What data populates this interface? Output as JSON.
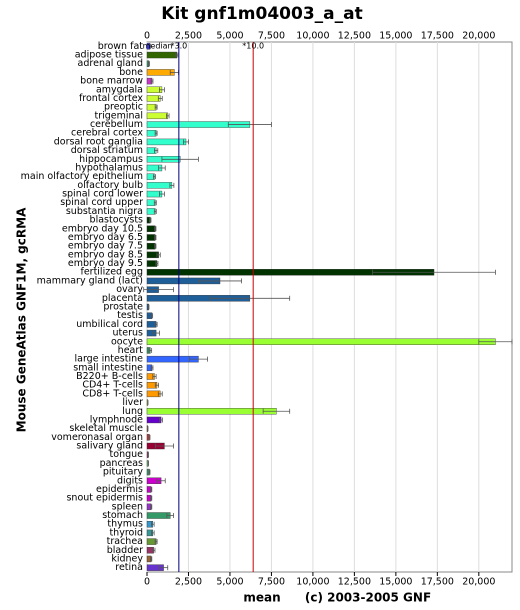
{
  "chart_data": {
    "type": "hbar",
    "title": "Kit gnf1m04003_a_at",
    "ylabel": "Mouse GeneAtlas GNF1M, gcRMA",
    "xlabel": "mean",
    "footer": "(c) 2003-2005 GNF",
    "categories": [
      "brown fat",
      "adipose tissue",
      "adrenal gland",
      "bone",
      "bone marrow",
      "amygdala",
      "frontal cortex",
      "preoptic",
      "trigeminal",
      "cerebellum",
      "cerebral cortex",
      "dorsal root ganglia",
      "dorsal striatum",
      "hippocampus",
      "hypothalamus",
      "main olfactory epithelium",
      "olfactory bulb",
      "spinal cord lower",
      "spinal cord upper",
      "substantia nigra",
      "blastocysts",
      "embryo day 10.5",
      "embryo day 6.5",
      "embryo day 7.5",
      "embryo day 8.5",
      "embryo day 9.5",
      "fertilized egg",
      "mammary gland (lact)",
      "ovary",
      "placenta",
      "prostate",
      "testis",
      "umbilical cord",
      "uterus",
      "oocyte",
      "heart",
      "large intestine",
      "small intestine",
      "B220+ B-cells",
      "CD4+ T-cells",
      "CD8+ T-cells",
      "liver",
      "lung",
      "lymphnode",
      "skeletal muscle",
      "vomeronasal organ",
      "salivary gland",
      "tongue",
      "pancreas",
      "pituitary",
      "digits",
      "epidermis",
      "snout epidermis",
      "spleen",
      "stomach",
      "thymus",
      "thyroid",
      "trachea",
      "bladder",
      "kidney",
      "retina"
    ],
    "values": [
      180,
      1800,
      120,
      1650,
      300,
      900,
      800,
      550,
      1250,
      6200,
      550,
      2350,
      550,
      2000,
      900,
      450,
      1500,
      900,
      500,
      500,
      200,
      500,
      500,
      500,
      700,
      600,
      17300,
      4400,
      700,
      6200,
      100,
      300,
      550,
      550,
      21000,
      200,
      3100,
      300,
      450,
      600,
      800,
      50,
      7800,
      850,
      50,
      150,
      1050,
      80,
      80,
      150,
      850,
      250,
      250,
      250,
      1400,
      350,
      350,
      550,
      400,
      250,
      1000
    ],
    "errors": [
      40,
      60,
      30,
      250,
      60,
      150,
      120,
      60,
      80,
      1300,
      60,
      150,
      100,
      1100,
      200,
      60,
      120,
      150,
      60,
      60,
      40,
      40,
      40,
      40,
      100,
      60,
      3700,
      1300,
      900,
      2400,
      20,
      40,
      60,
      200,
      1000,
      80,
      550,
      60,
      100,
      100,
      120,
      10,
      800,
      80,
      10,
      30,
      550,
      10,
      10,
      30,
      250,
      40,
      40,
      40,
      200,
      80,
      80,
      60,
      80,
      40,
      250
    ],
    "colors": [
      "#3333ff",
      "#336600",
      "#339966",
      "#ffaa00",
      "#cc33cc",
      "#ccff33",
      "#ccff33",
      "#ccff33",
      "#ccff33",
      "#33ffcc",
      "#33ffcc",
      "#33ffcc",
      "#33ffcc",
      "#33ffcc",
      "#33ffcc",
      "#33ffcc",
      "#33ffcc",
      "#33ffcc",
      "#33ffcc",
      "#33ffcc",
      "#003300",
      "#003300",
      "#003300",
      "#003300",
      "#003300",
      "#003300",
      "#003300",
      "#1f5f99",
      "#1f5f99",
      "#1f5f99",
      "#1f5f99",
      "#1f5f99",
      "#1f5f99",
      "#1f5f99",
      "#99ff33",
      "#339966",
      "#3366ff",
      "#3366ff",
      "#ff9900",
      "#ff9900",
      "#ff9900",
      "#ffff00",
      "#99ff33",
      "#6600cc",
      "#cc6600",
      "#cc3333",
      "#990033",
      "#993366",
      "#66cc66",
      "#339966",
      "#cc00cc",
      "#cc00cc",
      "#cc00cc",
      "#9933cc",
      "#339966",
      "#3399cc",
      "#339999",
      "#669933",
      "#993366",
      "#996633",
      "#6633cc"
    ],
    "xlim": [
      0,
      22000
    ],
    "xticks": [
      0,
      {
        "value": 2500,
        "label": "2,500"
      },
      {
        "value": 5000,
        "label": "5,000"
      },
      {
        "value": 7500,
        "label": "7,500"
      },
      {
        "value": 10000,
        "label": "10,000"
      },
      {
        "value": 12500,
        "label": "12,500"
      },
      {
        "value": 15000,
        "label": "15,000"
      },
      {
        "value": 17500,
        "label": "17,500"
      },
      {
        "value": 20000,
        "label": "20,000"
      }
    ],
    "grid": true,
    "reference_lines": [
      {
        "label": "median",
        "value": 640
      },
      {
        "label": "*3.0",
        "value": 1920,
        "color": "#000080"
      },
      {
        "label": "*10.0",
        "value": 6400,
        "color": "#cc0000"
      }
    ]
  }
}
